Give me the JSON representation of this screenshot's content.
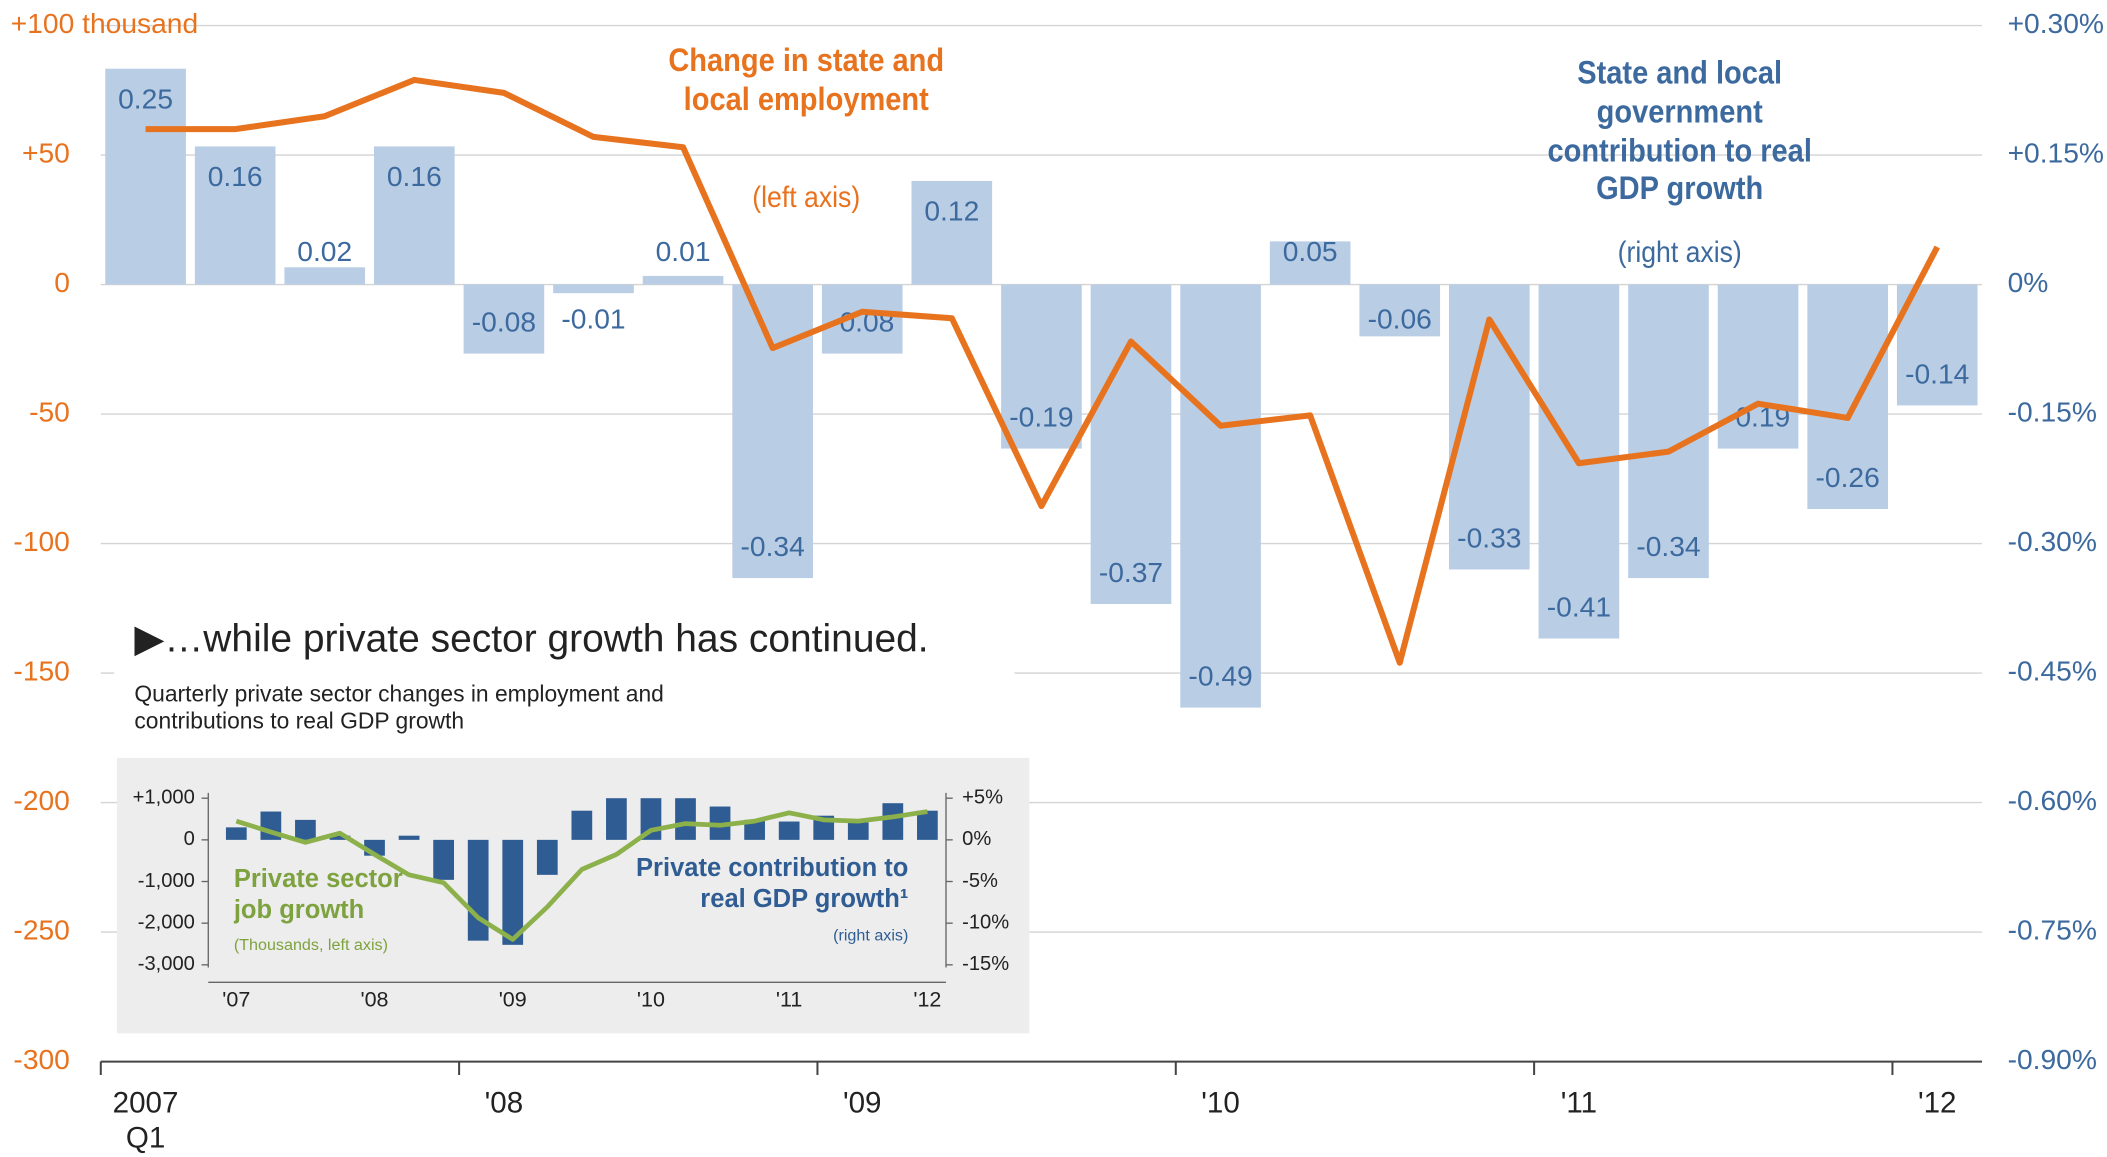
{
  "chart_data": [
    {
      "type": "combo",
      "categories": [
        "2007\nQ1",
        null,
        null,
        null,
        "'08",
        null,
        null,
        null,
        "'09",
        null,
        null,
        null,
        "'10",
        null,
        null,
        null,
        "'11",
        null,
        null,
        null,
        "'12"
      ],
      "ylim": [
        -300,
        100
      ],
      "yticks": [
        -300,
        -250,
        -200,
        -150,
        -100,
        -50,
        0,
        {
          "value": 50,
          "label": "+50"
        },
        {
          "value": 100,
          "label": "+100 thousand"
        }
      ],
      "y2lim": [
        -0.9,
        0.3
      ],
      "y2ticks": [
        {
          "value": -0.9,
          "label": "-0.90%"
        },
        {
          "value": -0.75,
          "label": "-0.75%"
        },
        {
          "value": -0.6,
          "label": "-0.60%"
        },
        {
          "value": -0.45,
          "label": "-0.45%"
        },
        {
          "value": -0.3,
          "label": "-0.30%"
        },
        {
          "value": -0.15,
          "label": "-0.15%"
        },
        {
          "value": 0,
          "label": "0%"
        },
        {
          "value": 0.15,
          "label": "+0.15%"
        },
        {
          "value": 0.3,
          "label": "+0.30%"
        }
      ],
      "grid": true,
      "series": [
        {
          "name": "State and local government contribution to real GDP growth",
          "axis_note": "(right axis)",
          "type": "bar",
          "axis": "y2",
          "color": "#b9cde5",
          "values": [
            0.25,
            0.16,
            0.02,
            0.16,
            -0.08,
            -0.01,
            0.01,
            -0.34,
            -0.08,
            0.12,
            -0.19,
            -0.37,
            -0.49,
            0.05,
            -0.06,
            -0.33,
            -0.41,
            -0.34,
            -0.19,
            -0.26,
            -0.14
          ]
        },
        {
          "name": "Change in state and local employment",
          "axis_note": "(left axis)",
          "type": "line",
          "color": "#e8731f",
          "values": [
            60,
            60,
            65,
            79,
            74,
            57,
            53,
            -24.5,
            -10.5,
            -13,
            -85.5,
            -22,
            -54.5,
            -50.5,
            -146,
            -13.5,
            -69,
            -64.5,
            -46,
            -51.5,
            14.5
          ]
        }
      ]
    },
    {
      "type": "combo",
      "title": "▶…while private sector growth has continued.",
      "subtitle": "Quarterly private sector changes in employment and contributions to real GDP growth",
      "categories": [
        "'07",
        null,
        null,
        null,
        "'08",
        null,
        null,
        null,
        "'09",
        null,
        null,
        null,
        "'10",
        null,
        null,
        null,
        "'11",
        null,
        null,
        null,
        "'12"
      ],
      "ylim": [
        -3000,
        1000
      ],
      "yticks": [
        {
          "value": -3000,
          "label": "-3,000"
        },
        {
          "value": -2000,
          "label": "-2,000"
        },
        {
          "value": -1000,
          "label": "-1,000"
        },
        0,
        {
          "value": 1000,
          "label": "+1,000"
        }
      ],
      "y2lim": [
        -15,
        5
      ],
      "y2ticks": [
        {
          "value": -15,
          "label": "-15%"
        },
        {
          "value": -10,
          "label": "-10%"
        },
        {
          "value": -5,
          "label": "-5%"
        },
        {
          "value": 0,
          "label": "0%"
        },
        {
          "value": 5,
          "label": "+5%"
        }
      ],
      "series": [
        {
          "name": "Private contribution to real GDP growth¹",
          "axis_note": "(right axis)",
          "type": "bar",
          "axis": "y2",
          "color": "#2f5d93",
          "values": [
            1.5,
            3.4,
            2.4,
            0.5,
            -1.9,
            0.5,
            -4.8,
            -12.1,
            -12.6,
            -4.2,
            3.5,
            5,
            5,
            5,
            4,
            2.4,
            2.2,
            2.9,
            2.1,
            4.4,
            3.5
          ]
        },
        {
          "name": "Private sector job growth",
          "axis_note": "(Thousands, left axis)",
          "type": "line",
          "color": "#8cb04a",
          "values": [
            450,
            190,
            -60,
            160,
            -350,
            -840,
            -1030,
            -1870,
            -2390,
            -1610,
            -710,
            -350,
            230,
            390,
            350,
            450,
            650,
            480,
            450,
            550,
            680
          ]
        }
      ]
    }
  ]
}
